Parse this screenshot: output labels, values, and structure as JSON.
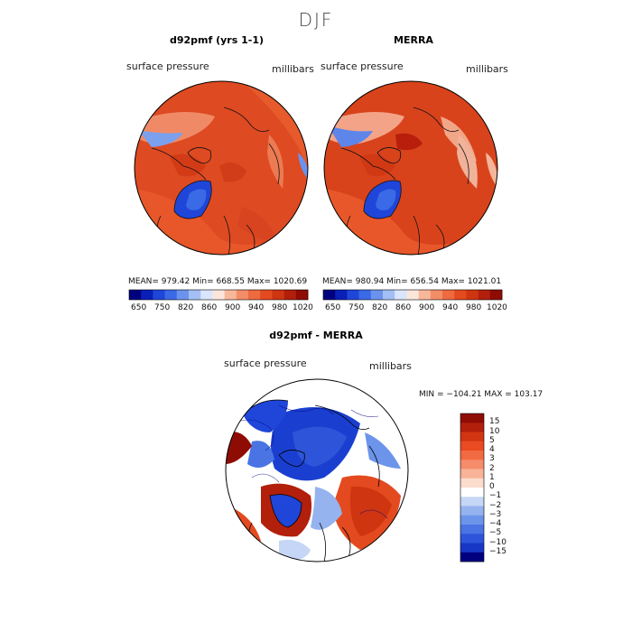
{
  "season": "DJF",
  "top_left": {
    "title": "d92pmf (yrs 1-1)",
    "field": "surface pressure",
    "units": "millibars",
    "stats": "MEAN= 979.42   Min= 668.55   Max= 1020.69"
  },
  "top_right": {
    "title": "MERRA",
    "field": "surface pressure",
    "units": "millibars",
    "stats": "MEAN= 980.94   Min= 656.54   Max= 1021.01"
  },
  "top_colorbar": {
    "ticks": [
      "650",
      "750",
      "820",
      "860",
      "900",
      "940",
      "980",
      "1020"
    ],
    "colors": [
      "#00007f",
      "#0a1fb8",
      "#1f46d8",
      "#3a6ae6",
      "#6b93ee",
      "#a3bff5",
      "#d9e6fb",
      "#fbe6dc",
      "#f7b79b",
      "#f38d68",
      "#ee6a3f",
      "#e44a1f",
      "#cf3511",
      "#b21f0b",
      "#8f0c05"
    ]
  },
  "bottom": {
    "title": "d92pmf - MERRA",
    "field": "surface pressure",
    "units": "millibars",
    "minmax": "MIN = −104.21  MAX = 103.17"
  },
  "chart_data": [
    {
      "type": "heatmap",
      "title": "d92pmf (yrs 1-1)",
      "projection": "north polar stereographic",
      "variable": "surface pressure",
      "units": "millibars",
      "mean": 979.42,
      "min": 668.55,
      "max": 1020.69,
      "color_levels": [
        650,
        750,
        820,
        860,
        900,
        940,
        980,
        1020
      ]
    },
    {
      "type": "heatmap",
      "title": "MERRA",
      "projection": "north polar stereographic",
      "variable": "surface pressure",
      "units": "millibars",
      "mean": 980.94,
      "min": 656.54,
      "max": 1021.01,
      "color_levels": [
        650,
        750,
        820,
        860,
        900,
        940,
        980,
        1020
      ]
    },
    {
      "type": "heatmap",
      "title": "d92pmf - MERRA",
      "projection": "north polar stereographic",
      "variable": "surface pressure",
      "units": "millibars",
      "min": -104.21,
      "max": 103.17,
      "color_levels": [
        "15",
        "10",
        "5",
        "4",
        "3",
        "2",
        "1",
        "0",
        "−1",
        "−2",
        "−3",
        "−4",
        "−5",
        "−10",
        "−15"
      ],
      "level_colors": [
        "#8f0c05",
        "#b21f0b",
        "#d23511",
        "#ea4b22",
        "#f26a42",
        "#f58c6a",
        "#f8b398",
        "#fcdccd",
        "#ffffff",
        "#c6d6f6",
        "#95b3ef",
        "#6c94ea",
        "#4a74e4",
        "#2e55d9",
        "#1737c6",
        "#00007f"
      ]
    }
  ]
}
